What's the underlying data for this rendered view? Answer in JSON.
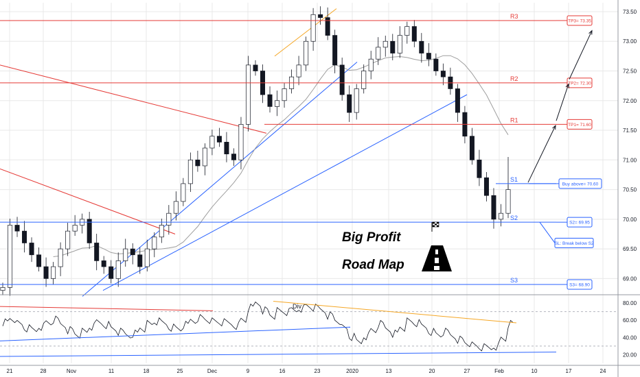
{
  "colors": {
    "support": "#2962ff",
    "resistance": "#e53935",
    "orange": "#f5a623",
    "candle": "#131722",
    "ma": "#9e9e9e",
    "grid": "#e8e8e8"
  },
  "chart_data": [
    {
      "type": "candlestick",
      "title": "",
      "price_axis": {
        "ticks": [
          "73.50",
          "73.00",
          "72.50",
          "72.00",
          "71.50",
          "71.00",
          "70.50",
          "70.00",
          "69.50",
          "69.00"
        ],
        "range": [
          68.75,
          73.65
        ]
      },
      "date_axis": {
        "ticks": [
          "21",
          "28",
          "Nov",
          "11",
          "18",
          "25",
          "Dec",
          "9",
          "16",
          "23",
          "2020",
          "13",
          "20",
          "27",
          "Feb",
          "10",
          "17",
          "24"
        ]
      },
      "levels": [
        {
          "label": "R3",
          "price": 73.35,
          "target_label": "TP3= 73.35"
        },
        {
          "label": "R2",
          "price": 72.3,
          "target_label": "TP2= 72.30"
        },
        {
          "label": "R1",
          "price": 71.6,
          "target_label": "TP1= 71.60"
        },
        {
          "label": "S1",
          "price": 70.6,
          "target_label": "Buy above= 70.60"
        },
        {
          "label": "S2",
          "price": 69.95,
          "target_label": "S2= 69.95"
        },
        {
          "label": "S3",
          "price": 68.9,
          "target_label": "S3= 68.90"
        }
      ],
      "notes": [
        "SL: Break below S2"
      ],
      "overlay_text": [
        "Big Profit",
        "Road Map"
      ],
      "close_series": [
        68.85,
        69.9,
        69.8,
        69.6,
        69.4,
        69.2,
        69.0,
        69.2,
        69.5,
        69.8,
        69.9,
        70.0,
        69.6,
        69.3,
        69.2,
        69.0,
        69.3,
        69.5,
        69.4,
        69.2,
        69.5,
        69.7,
        69.9,
        70.1,
        70.3,
        70.6,
        71.0,
        70.9,
        71.2,
        71.4,
        71.3,
        71.1,
        71.0,
        71.6,
        72.6,
        72.5,
        72.1,
        71.9,
        72.0,
        72.2,
        72.4,
        72.6,
        73.0,
        73.45,
        73.4,
        73.1,
        72.6,
        72.1,
        71.8,
        72.2,
        72.5,
        72.7,
        72.9,
        73.0,
        72.8,
        73.1,
        73.25,
        73.0,
        72.8,
        72.7,
        72.5,
        72.4,
        72.2,
        71.8,
        71.4,
        71.0,
        70.7,
        70.4,
        70.0,
        70.1,
        70.5
      ]
    },
    {
      "type": "line",
      "title": "",
      "value_axis": {
        "ticks": [
          "80.00",
          "60.00",
          "40.00",
          "20.00"
        ],
        "range": [
          10,
          88
        ]
      },
      "annotations": [
        "Div"
      ],
      "values": [
        58,
        62,
        55,
        50,
        48,
        53,
        57,
        60,
        55,
        49,
        44,
        46,
        52,
        57,
        55,
        50,
        46,
        43,
        45,
        51,
        55,
        58,
        56,
        52,
        50,
        54,
        60,
        63,
        61,
        58,
        57,
        56,
        54,
        60,
        74,
        80,
        72,
        66,
        70,
        69,
        71,
        74,
        76,
        74,
        72,
        66,
        60,
        50,
        40,
        34,
        42,
        48,
        55,
        50,
        45,
        52,
        58,
        56,
        52,
        47,
        43,
        46,
        42,
        38,
        34,
        30,
        28,
        27,
        30,
        38,
        55
      ]
    }
  ]
}
